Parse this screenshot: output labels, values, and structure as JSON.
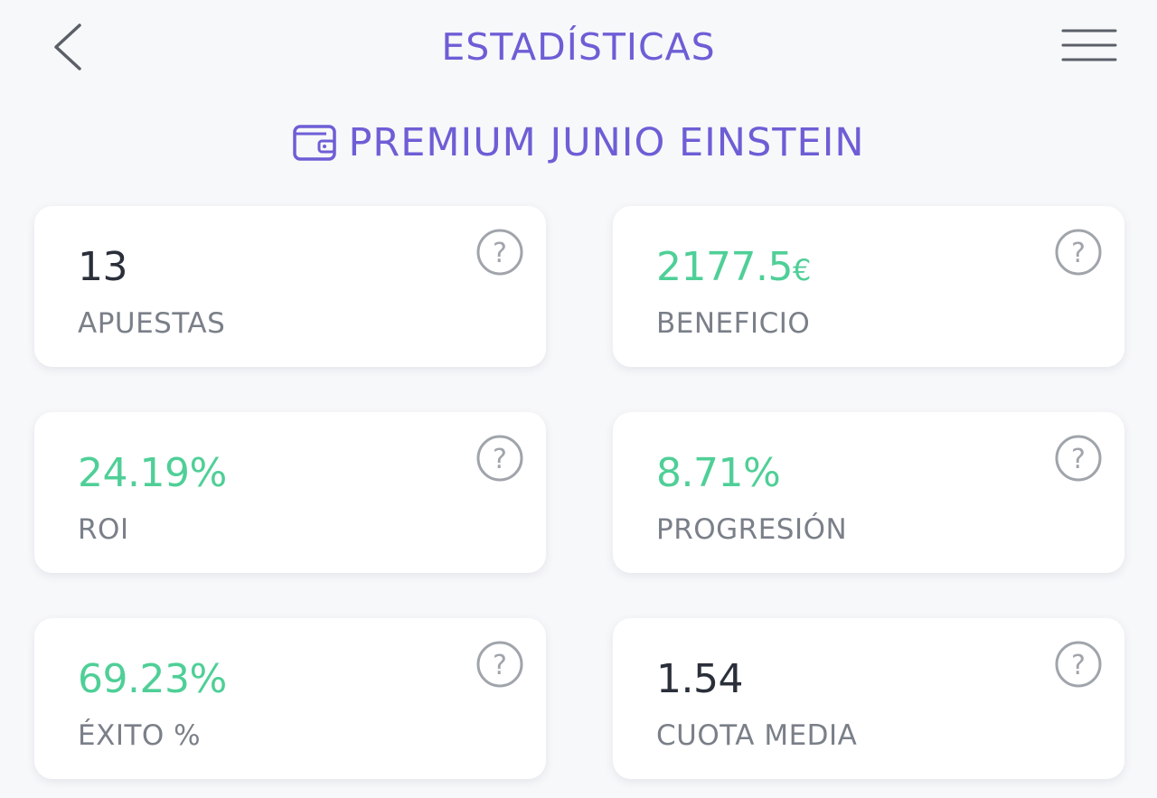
{
  "header": {
    "title": "ESTADÍSTICAS",
    "back_icon": "chevron-left-icon",
    "menu_icon": "hamburger-menu-icon"
  },
  "plan": {
    "icon": "wallet-icon",
    "name": "PREMIUM JUNIO EINSTEIN"
  },
  "colors": {
    "accent": "#6d5ed6",
    "positive": "#4fcf97",
    "text_dark": "#2a2f3a",
    "text_muted": "#7a7f88",
    "background": "#f7f8fa",
    "card": "#ffffff"
  },
  "stats": [
    {
      "value": "13",
      "unit": "",
      "label": "APUESTAS",
      "positive": false
    },
    {
      "value": "2177.5",
      "unit": "€",
      "label": "BENEFICIO",
      "positive": true
    },
    {
      "value": "24.19%",
      "unit": "",
      "label": "ROI",
      "positive": true
    },
    {
      "value": "8.71%",
      "unit": "",
      "label": "PROGRESIÓN",
      "positive": true
    },
    {
      "value": "69.23%",
      "unit": "",
      "label": "ÉXITO %",
      "positive": true
    },
    {
      "value": "1.54",
      "unit": "",
      "label": "CUOTA MEDIA",
      "positive": false
    }
  ],
  "help_icon": "help-circle-icon"
}
